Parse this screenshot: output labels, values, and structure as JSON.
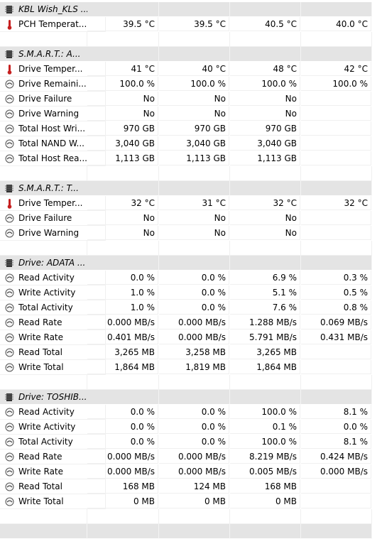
{
  "groups": [
    {
      "title": "KBL Wish_KLS ...",
      "rows": [
        {
          "label": "PCH Temperat...",
          "values": [
            "39.5 °C",
            "39.5 °C",
            "40.5 °C",
            "40.0 °C"
          ]
        }
      ]
    },
    {
      "title": "S.M.A.R.T.: A...",
      "rows": [
        {
          "label": "Drive Temper...",
          "values": [
            "41 °C",
            "40 °C",
            "48 °C",
            "42 °C"
          ]
        },
        {
          "label": "Drive Remaini...",
          "values": [
            "100.0 %",
            "100.0 %",
            "100.0 %",
            "100.0 %"
          ]
        },
        {
          "label": "Drive Failure",
          "values": [
            "No",
            "No",
            "No"
          ]
        },
        {
          "label": "Drive Warning",
          "values": [
            "No",
            "No",
            "No"
          ]
        },
        {
          "label": "Total Host Wri...",
          "values": [
            "970 GB",
            "970 GB",
            "970 GB"
          ]
        },
        {
          "label": "Total NAND W...",
          "values": [
            "3,040 GB",
            "3,040 GB",
            "3,040 GB"
          ]
        },
        {
          "label": "Total Host Rea...",
          "values": [
            "1,113 GB",
            "1,113 GB",
            "1,113 GB"
          ]
        }
      ]
    },
    {
      "title": "S.M.A.R.T.: T...",
      "rows": [
        {
          "label": "Drive Temper...",
          "values": [
            "32 °C",
            "31 °C",
            "32 °C",
            "32 °C"
          ]
        },
        {
          "label": "Drive Failure",
          "values": [
            "No",
            "No",
            "No"
          ]
        },
        {
          "label": "Drive Warning",
          "values": [
            "No",
            "No",
            "No"
          ]
        }
      ]
    },
    {
      "title": "Drive: ADATA ...",
      "rows": [
        {
          "label": "Read Activity",
          "values": [
            "0.0 %",
            "0.0 %",
            "6.9 %",
            "0.3 %"
          ]
        },
        {
          "label": "Write Activity",
          "values": [
            "1.0 %",
            "0.0 %",
            "5.1 %",
            "0.5 %"
          ]
        },
        {
          "label": "Total Activity",
          "values": [
            "1.0 %",
            "0.0 %",
            "7.6 %",
            "0.8 %"
          ]
        },
        {
          "label": "Read Rate",
          "values": [
            "0.000 MB/s",
            "0.000 MB/s",
            "1.288 MB/s",
            "0.069 MB/s"
          ]
        },
        {
          "label": "Write Rate",
          "values": [
            "0.401 MB/s",
            "0.000 MB/s",
            "5.791 MB/s",
            "0.431 MB/s"
          ]
        },
        {
          "label": "Read Total",
          "values": [
            "3,265 MB",
            "3,258 MB",
            "3,265 MB"
          ]
        },
        {
          "label": "Write Total",
          "values": [
            "1,864 MB",
            "1,819 MB",
            "1,864 MB"
          ]
        }
      ]
    },
    {
      "title": "Drive: TOSHIB...",
      "rows": [
        {
          "label": "Read Activity",
          "values": [
            "0.0 %",
            "0.0 %",
            "100.0 %",
            "8.1 %"
          ]
        },
        {
          "label": "Write Activity",
          "values": [
            "0.0 %",
            "0.0 %",
            "0.1 %",
            "0.0 %"
          ]
        },
        {
          "label": "Total Activity",
          "values": [
            "0.0 %",
            "0.0 %",
            "100.0 %",
            "8.1 %"
          ]
        },
        {
          "label": "Read Rate",
          "values": [
            "0.000 MB/s",
            "0.000 MB/s",
            "8.219 MB/s",
            "0.424 MB/s"
          ]
        },
        {
          "label": "Write Rate",
          "values": [
            "0.000 MB/s",
            "0.000 MB/s",
            "0.005 MB/s",
            "0.000 MB/s"
          ]
        },
        {
          "label": "Read Total",
          "values": [
            "168 MB",
            "124 MB",
            "168 MB"
          ]
        },
        {
          "label": "Write Total",
          "values": [
            "0 MB",
            "0 MB",
            "0 MB"
          ]
        }
      ]
    }
  ]
}
